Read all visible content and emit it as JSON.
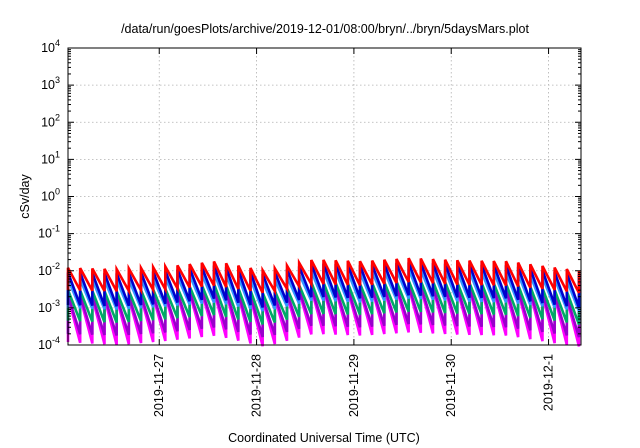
{
  "chart_data": {
    "type": "line",
    "title": "/data/run/goesPlots/archive/2019-12-01/08:00/bryn/../bryn/5daysMars.plot",
    "xlabel": "Coordinated Universal Time (UTC)",
    "ylabel": "cSv/day",
    "y_scale": "log",
    "ylim": [
      0.0001,
      10000
    ],
    "yticks": [
      {
        "value": 0.0001,
        "base": "10",
        "exp": "-4"
      },
      {
        "value": 0.001,
        "base": "10",
        "exp": "-3"
      },
      {
        "value": 0.01,
        "base": "10",
        "exp": "-2"
      },
      {
        "value": 0.1,
        "base": "10",
        "exp": "-1"
      },
      {
        "value": 1,
        "base": "10",
        "exp": "0"
      },
      {
        "value": 10,
        "base": "10",
        "exp": "1"
      },
      {
        "value": 100,
        "base": "10",
        "exp": "2"
      },
      {
        "value": 1000,
        "base": "10",
        "exp": "3"
      },
      {
        "value": 10000,
        "base": "10",
        "exp": "4"
      }
    ],
    "xlim": [
      "2019-11-26T01:30",
      "2019-12-01T08:00"
    ],
    "xticks": [
      "2019-11-27",
      "2019-11-28",
      "2019-11-29",
      "2019-11-30",
      "2019-12-1"
    ],
    "grid": true,
    "legend": "none",
    "sawtooth_period_hours": 3,
    "series": [
      {
        "color": "#ff0000",
        "x": [
          "2019-11-26T01:30",
          "2019-11-26T14:00",
          "2019-11-27T02:00",
          "2019-11-27T14:00",
          "2019-11-28T02:00",
          "2019-11-28T14:00",
          "2019-11-29T02:00",
          "2019-11-29T14:00",
          "2019-11-30T02:00",
          "2019-11-30T14:00",
          "2019-12-01T02:00",
          "2019-12-01T08:00"
        ],
        "peak": [
          0.012,
          0.011,
          0.013,
          0.018,
          0.01,
          0.02,
          0.018,
          0.022,
          0.019,
          0.018,
          0.012,
          0.01
        ],
        "trough": [
          0.003,
          0.0028,
          0.0032,
          0.004,
          0.0025,
          0.0045,
          0.004,
          0.005,
          0.0042,
          0.004,
          0.003,
          0.0025
        ]
      },
      {
        "color": "#0000cc",
        "x": [
          "2019-11-26T01:30",
          "2019-11-26T14:00",
          "2019-11-27T02:00",
          "2019-11-27T14:00",
          "2019-11-28T02:00",
          "2019-11-28T14:00",
          "2019-11-29T02:00",
          "2019-11-29T14:00",
          "2019-11-30T02:00",
          "2019-11-30T14:00",
          "2019-12-01T02:00",
          "2019-12-01T08:00"
        ],
        "peak": [
          0.009,
          0.0085,
          0.01,
          0.014,
          0.008,
          0.016,
          0.014,
          0.017,
          0.015,
          0.014,
          0.009,
          0.008
        ],
        "trough": [
          0.0012,
          0.0011,
          0.0013,
          0.0018,
          0.001,
          0.002,
          0.0018,
          0.0022,
          0.0019,
          0.0018,
          0.0012,
          0.001
        ]
      },
      {
        "color": "#3399ff",
        "x": [
          "2019-11-26T01:30",
          "2019-11-26T14:00",
          "2019-11-27T02:00",
          "2019-11-27T14:00",
          "2019-11-28T02:00",
          "2019-11-28T14:00",
          "2019-11-29T02:00",
          "2019-11-29T14:00",
          "2019-11-30T02:00",
          "2019-11-30T14:00",
          "2019-12-01T02:00",
          "2019-12-01T08:00"
        ],
        "peak": [
          0.006,
          0.0055,
          0.0065,
          0.009,
          0.005,
          0.01,
          0.009,
          0.011,
          0.0095,
          0.009,
          0.006,
          0.005
        ],
        "trough": [
          0.001,
          0.0009,
          0.0011,
          0.0014,
          0.0008,
          0.0016,
          0.0014,
          0.0018,
          0.0015,
          0.0014,
          0.001,
          0.0008
        ]
      },
      {
        "color": "#00aa66",
        "x": [
          "2019-11-26T01:30",
          "2019-11-26T14:00",
          "2019-11-27T02:00",
          "2019-11-27T14:00",
          "2019-11-28T02:00",
          "2019-11-28T14:00",
          "2019-11-29T02:00",
          "2019-11-29T14:00",
          "2019-11-30T02:00",
          "2019-11-30T14:00",
          "2019-12-01T02:00",
          "2019-12-01T08:00"
        ],
        "peak": [
          0.003,
          0.0028,
          0.0033,
          0.0045,
          0.0025,
          0.005,
          0.0045,
          0.0055,
          0.0048,
          0.0045,
          0.003,
          0.0025
        ],
        "trough": [
          0.00045,
          0.0004,
          0.0005,
          0.00065,
          0.00035,
          0.0007,
          0.00065,
          0.0008,
          0.0007,
          0.00065,
          0.00045,
          0.00035
        ]
      },
      {
        "color": "#9900cc",
        "x": [
          "2019-11-26T01:30",
          "2019-11-26T14:00",
          "2019-11-27T02:00",
          "2019-11-27T14:00",
          "2019-11-28T02:00",
          "2019-11-28T14:00",
          "2019-11-29T02:00",
          "2019-11-29T14:00",
          "2019-11-30T02:00",
          "2019-11-30T14:00",
          "2019-12-01T02:00",
          "2019-12-01T08:00"
        ],
        "peak": [
          0.0022,
          0.002,
          0.0024,
          0.0033,
          0.0018,
          0.0037,
          0.0033,
          0.004,
          0.0035,
          0.0033,
          0.0022,
          0.0018
        ],
        "trough": [
          0.0002,
          0.00018,
          0.00022,
          0.0003,
          0.00016,
          0.00034,
          0.0003,
          0.00037,
          0.00032,
          0.0003,
          0.0002,
          0.00016
        ]
      },
      {
        "color": "#ff00ff",
        "x": [
          "2019-11-26T01:30",
          "2019-11-26T14:00",
          "2019-11-27T02:00",
          "2019-11-27T14:00",
          "2019-11-28T02:00",
          "2019-11-28T14:00",
          "2019-11-29T02:00",
          "2019-11-29T14:00",
          "2019-11-30T02:00",
          "2019-11-30T14:00",
          "2019-12-01T02:00",
          "2019-12-01T08:00"
        ],
        "peak": [
          0.002,
          0.0018,
          0.0022,
          0.003,
          0.0016,
          0.0034,
          0.003,
          0.0037,
          0.0032,
          0.003,
          0.002,
          0.0016
        ],
        "trough": [
          0.00012,
          0.0001,
          0.00013,
          0.00018,
          9e-05,
          0.0002,
          0.00018,
          0.00022,
          0.00019,
          0.00018,
          0.00011,
          9e-05
        ]
      }
    ]
  }
}
